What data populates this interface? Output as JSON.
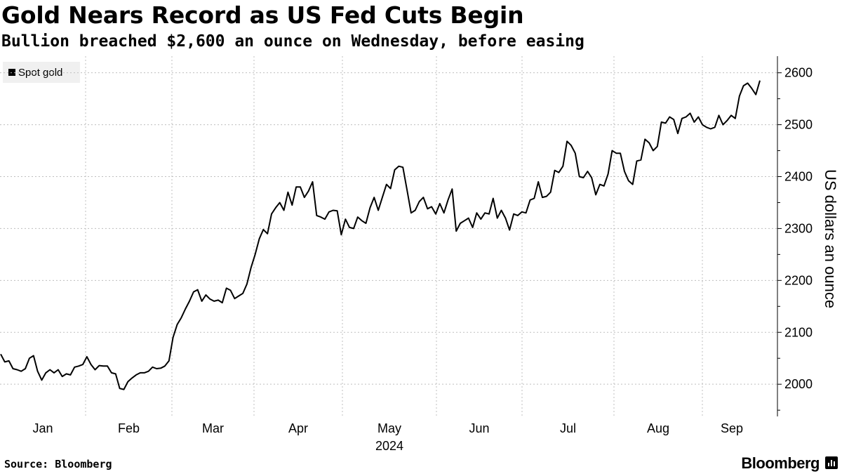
{
  "header": {
    "title": "Gold Nears Record as US Fed Cuts Begin",
    "subtitle": "Bullion breached $2,600 an ounce on Wednesday, before easing"
  },
  "footer": {
    "source": "Source: Bloomberg",
    "brand": "Bloomberg"
  },
  "colors": {
    "line": "#000000",
    "grid": "#bfbfbf",
    "legend_bg": "#f0f0f0"
  },
  "chart_data": {
    "type": "line",
    "title": "Gold Nears Record as US Fed Cuts Begin",
    "subtitle": "Bullion breached $2,600 an ounce on Wednesday, before easing",
    "ylabel": "US dollars an ounce",
    "xlabel": "2024",
    "ylim": [
      1938,
      2632
    ],
    "yticks": [
      2000,
      2100,
      2200,
      2300,
      2400,
      2500,
      2600
    ],
    "grid": true,
    "legend_position": "top-left",
    "months": [
      "Jan",
      "Feb",
      "Mar",
      "Apr",
      "May",
      "Jun",
      "Jul",
      "Aug",
      "Sep"
    ],
    "year_label": "2024",
    "series": [
      {
        "name": "Spot gold",
        "values": [
          2058,
          2043,
          2045,
          2030,
          2028,
          2025,
          2030,
          2050,
          2055,
          2025,
          2008,
          2022,
          2028,
          2022,
          2028,
          2015,
          2020,
          2018,
          2033,
          2035,
          2038,
          2053,
          2038,
          2028,
          2036,
          2035,
          2035,
          2022,
          2020,
          1992,
          1990,
          2005,
          2012,
          2018,
          2022,
          2022,
          2025,
          2033,
          2030,
          2031,
          2035,
          2045,
          2090,
          2115,
          2128,
          2145,
          2160,
          2178,
          2182,
          2160,
          2172,
          2164,
          2160,
          2162,
          2157,
          2185,
          2181,
          2165,
          2170,
          2175,
          2193,
          2225,
          2250,
          2280,
          2298,
          2290,
          2328,
          2340,
          2350,
          2335,
          2370,
          2345,
          2380,
          2380,
          2360,
          2372,
          2390,
          2325,
          2322,
          2318,
          2332,
          2335,
          2334,
          2288,
          2318,
          2302,
          2300,
          2322,
          2315,
          2310,
          2340,
          2360,
          2335,
          2360,
          2385,
          2377,
          2413,
          2420,
          2418,
          2375,
          2330,
          2335,
          2352,
          2360,
          2338,
          2342,
          2328,
          2348,
          2330,
          2355,
          2376,
          2295,
          2310,
          2315,
          2320,
          2302,
          2330,
          2318,
          2330,
          2328,
          2358,
          2320,
          2335,
          2320,
          2297,
          2328,
          2325,
          2332,
          2330,
          2355,
          2358,
          2390,
          2360,
          2362,
          2370,
          2412,
          2408,
          2420,
          2468,
          2460,
          2445,
          2400,
          2398,
          2410,
          2398,
          2365,
          2385,
          2382,
          2405,
          2450,
          2445,
          2445,
          2410,
          2392,
          2385,
          2430,
          2432,
          2472,
          2465,
          2450,
          2458,
          2505,
          2503,
          2515,
          2510,
          2483,
          2512,
          2515,
          2522,
          2505,
          2515,
          2500,
          2495,
          2492,
          2495,
          2518,
          2500,
          2508,
          2518,
          2512,
          2555,
          2575,
          2580,
          2570,
          2558,
          2585
        ]
      }
    ]
  }
}
